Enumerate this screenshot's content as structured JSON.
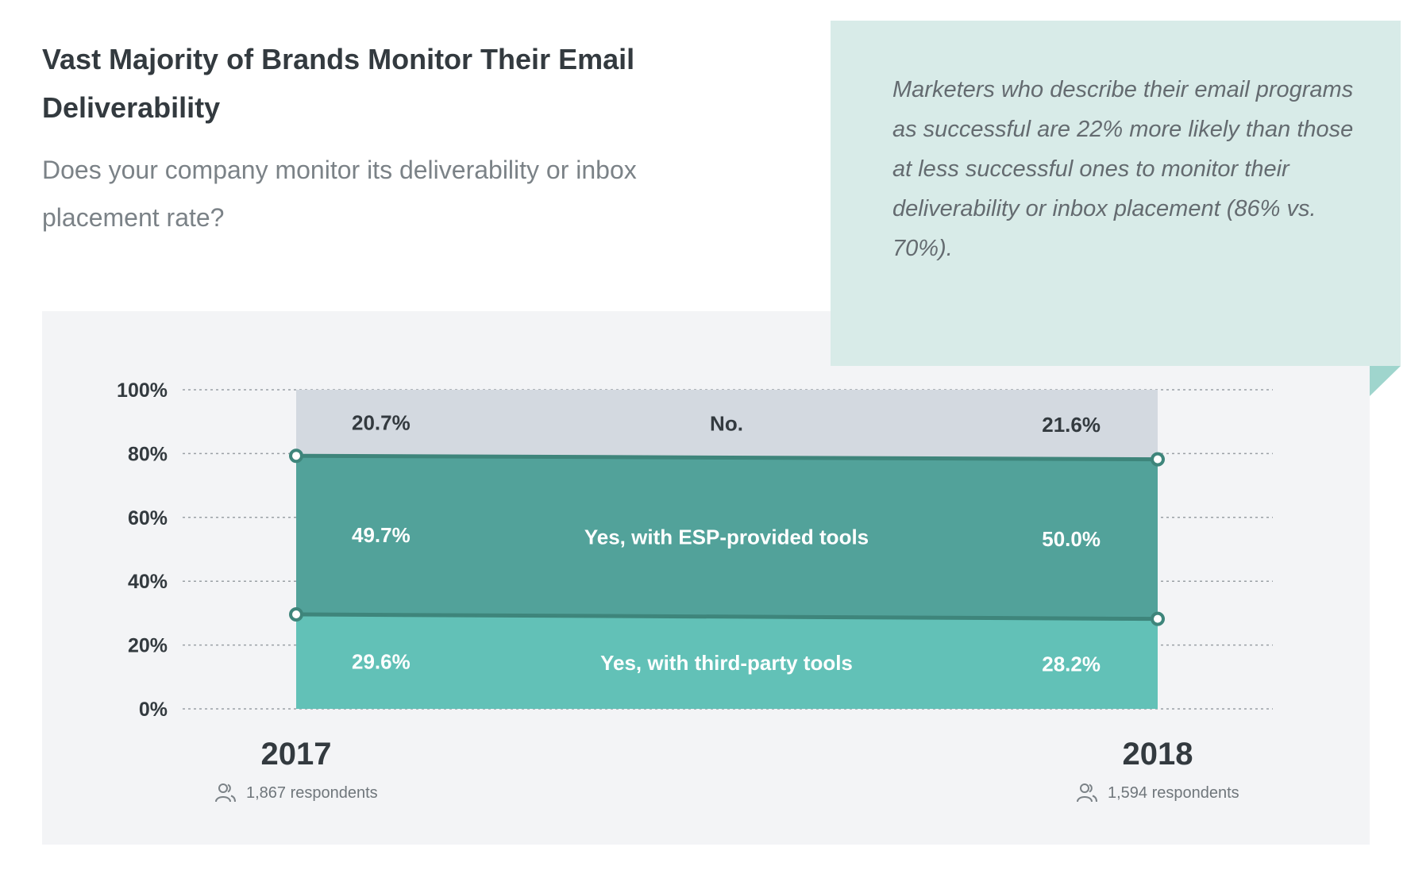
{
  "header": {
    "title": "Vast Majority of Brands Monitor Their Email Deliverability",
    "subtitle": "Does your company monitor its deliverability or inbox placement rate?"
  },
  "callout": {
    "text": "Marketers who describe their email programs as successful are 22% more likely than those at less successful ones to monitor their deliverability or inbox placement (86% vs. 70%)."
  },
  "chart_data": {
    "type": "area",
    "stacked": true,
    "x": [
      "2017",
      "2018"
    ],
    "ylim": [
      0,
      100
    ],
    "yticks": [
      "0%",
      "20%",
      "40%",
      "60%",
      "80%",
      "100%"
    ],
    "grid": true,
    "series": [
      {
        "name": "Yes, with third-party tools",
        "values": [
          29.6,
          28.2
        ],
        "labels": [
          "29.6%",
          "28.2%"
        ],
        "color": "#62c1b7"
      },
      {
        "name": "Yes, with ESP-provided tools",
        "values": [
          49.7,
          50.0
        ],
        "labels": [
          "49.7%",
          "50.0%"
        ],
        "color": "#52a29a"
      },
      {
        "name": "No.",
        "values": [
          20.7,
          21.6
        ],
        "labels": [
          "20.7%",
          "21.6%"
        ],
        "color": "#d3d9e0"
      }
    ],
    "respondents": [
      "1,867 respondents",
      "1,594 respondents"
    ]
  },
  "colors": {
    "divider_line": "#3e857b",
    "label_dark": "#333a3f",
    "label_light": "#ffffff"
  },
  "icons": {
    "respondents": "people-icon"
  }
}
